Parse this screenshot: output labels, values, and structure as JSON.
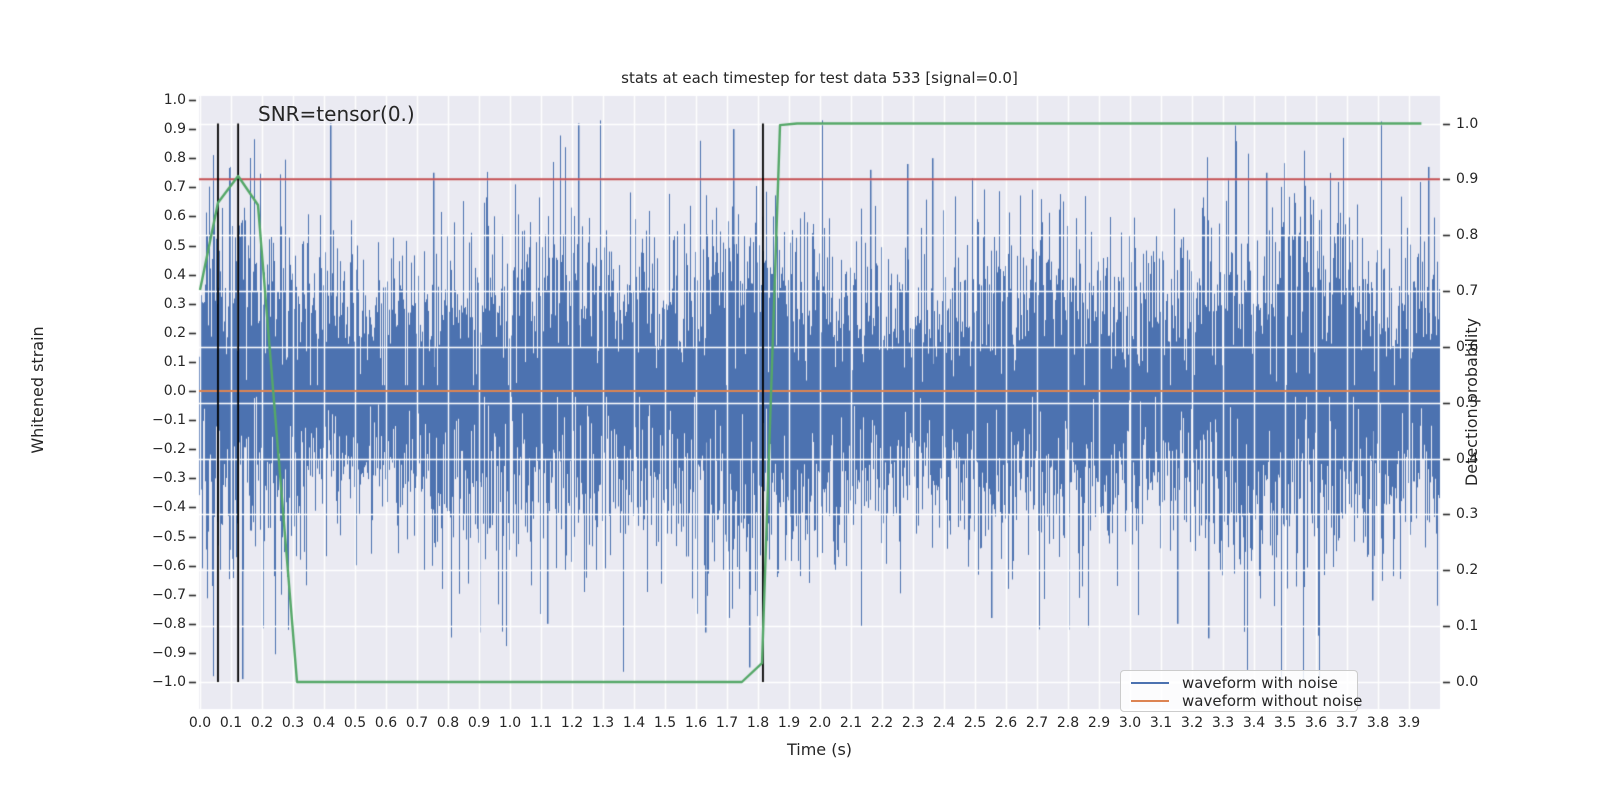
{
  "title": "stats at each timestep for test data 533 [signal=0.0]",
  "annotation": {
    "text": "SNR=tensor(0.)",
    "x": 0.2,
    "y_strain": 0.93
  },
  "axes": {
    "xlabel": "Time (s)",
    "ylabel_left": "Whitened strain",
    "ylabel_right": "Detection probability",
    "bg_color": "#eaeaf2",
    "grid_color": "#ffffff",
    "text_color": "#262626",
    "xticks": [
      0.0,
      0.1,
      0.2,
      0.3,
      0.4,
      0.5,
      0.6,
      0.7,
      0.8,
      0.9,
      1.0,
      1.1,
      1.2,
      1.3,
      1.4,
      1.5,
      1.6,
      1.7,
      1.8,
      1.9,
      2.0,
      2.1,
      2.2,
      2.3,
      2.4,
      2.5,
      2.6,
      2.7,
      2.8,
      2.9,
      3.0,
      3.1,
      3.2,
      3.3,
      3.4,
      3.5,
      3.6,
      3.7,
      3.8,
      3.9
    ],
    "yticks_left": [
      1.0,
      0.9,
      0.8,
      0.7,
      0.6,
      0.5,
      0.4,
      0.3,
      0.2,
      0.1,
      0.0,
      -0.1,
      -0.2,
      -0.3,
      -0.4,
      -0.5,
      -0.6,
      -0.7,
      -0.8,
      -0.9,
      -1.0
    ],
    "yticks_right": [
      1.0,
      0.9,
      0.8,
      0.7,
      0.6,
      0.5,
      0.4,
      0.3,
      0.2,
      0.1,
      0.0
    ]
  },
  "chart_data": {
    "type": "line",
    "title": "stats at each timestep for test data 533 [signal=0.0]",
    "xlabel": "Time (s)",
    "ylabel": "Whitened strain",
    "ylabel_right": "Detection probability",
    "xlim": [
      0.0,
      4.0
    ],
    "ylim_left": [
      -1.1,
      1.02
    ],
    "ylim_right": [
      -0.047,
      1.049
    ],
    "grid": true,
    "series": [
      {
        "name": "waveform with noise",
        "axis": "left",
        "color": "#4c72b0",
        "kind": "gaussian-noise-envelope",
        "seed": 533,
        "sigma": 0.26,
        "samples_per_column": 7,
        "notable_spikes": [
          [
            0.135,
            -0.99
          ],
          [
            0.42,
            0.92
          ],
          [
            0.75,
            0.75
          ],
          [
            0.9,
            -0.83
          ],
          [
            1.12,
            -0.8
          ],
          [
            1.22,
            0.92
          ],
          [
            1.63,
            -0.83
          ],
          [
            1.72,
            0.9
          ],
          [
            1.77,
            -0.95
          ],
          [
            2.16,
            0.76
          ],
          [
            2.28,
            0.78
          ],
          [
            2.36,
            0.8
          ],
          [
            2.55,
            -0.78
          ],
          [
            2.8,
            -0.82
          ],
          [
            3.15,
            -0.8
          ],
          [
            3.25,
            -0.85
          ],
          [
            3.44,
            0.75
          ],
          [
            3.78,
            -0.72
          ],
          [
            3.96,
            0.77
          ]
        ]
      },
      {
        "name": "waveform without noise",
        "axis": "left",
        "color": "#dd8452",
        "kind": "constant",
        "value": 0.0
      },
      {
        "name": "detection probability",
        "axis": "right",
        "color": "#55a868",
        "kind": "polyline",
        "points": [
          [
            0.0,
            0.702
          ],
          [
            0.058,
            0.858
          ],
          [
            0.123,
            0.906
          ],
          [
            0.187,
            0.854
          ],
          [
            0.313,
            0.0
          ],
          [
            1.748,
            0.0
          ],
          [
            1.813,
            0.034
          ],
          [
            1.871,
            0.997
          ],
          [
            1.926,
            1.0
          ],
          [
            3.94,
            1.0
          ]
        ]
      }
    ],
    "threshold_line": {
      "axis": "right",
      "value": 0.9,
      "color": "#c44e52"
    },
    "vlines": {
      "times": [
        0.058,
        0.123,
        1.816
      ],
      "color": "#000000",
      "span_probability": [
        0.0,
        1.0
      ]
    }
  },
  "legend": {
    "entries": [
      {
        "label": "waveform with noise",
        "color": "#4c72b0"
      },
      {
        "label": "waveform without noise",
        "color": "#dd8452"
      }
    ]
  }
}
